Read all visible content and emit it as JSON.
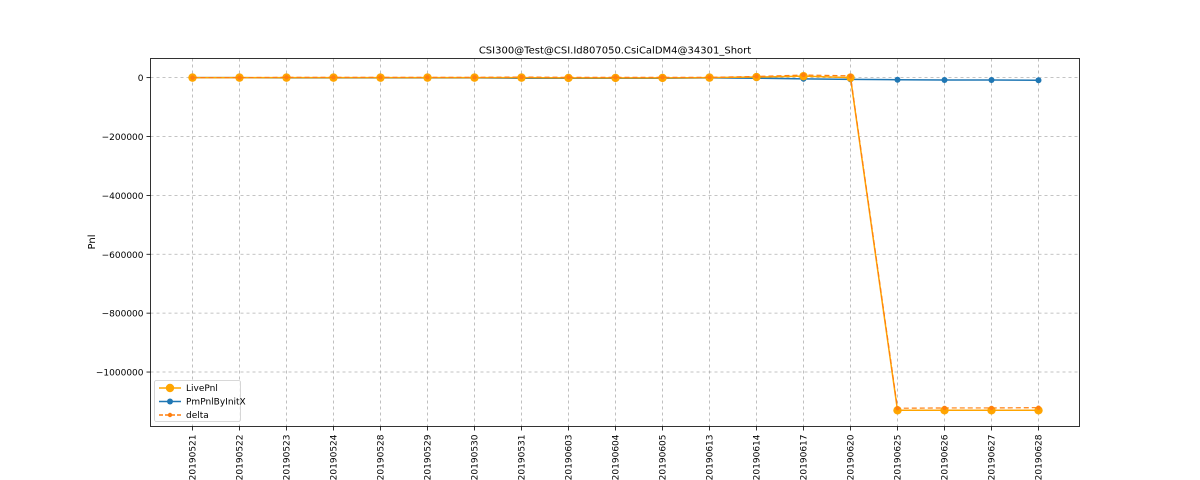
{
  "chart_data": {
    "type": "line",
    "title": "CSI300@Test@CSI.Id807050.CsiCalDM4@34301_Short",
    "xlabel": "",
    "ylabel": "Pnl",
    "categories": [
      "20190521",
      "20190522",
      "20190523",
      "20190524",
      "20190528",
      "20190529",
      "20190530",
      "20190531",
      "20190603",
      "20190604",
      "20190605",
      "20190613",
      "20190614",
      "20190617",
      "20190620",
      "20190625",
      "20190626",
      "20190627",
      "20190628"
    ],
    "ylim": [
      -1185000,
      65000
    ],
    "yticks": [
      0,
      -200000,
      -400000,
      -600000,
      -800000,
      -1000000
    ],
    "ytick_labels": [
      "0",
      "−200000",
      "−400000",
      "−600000",
      "−800000",
      "−1000000"
    ],
    "grid": true,
    "legend_position": "lower-left",
    "series": [
      {
        "name": "LivePnl",
        "color": "#ffa500",
        "style": "solid",
        "marker": "large-circle",
        "values": [
          0,
          0,
          0,
          0,
          0,
          0,
          0,
          0,
          -1000,
          -1000,
          -1000,
          0,
          2000,
          5000,
          0,
          -1130000,
          -1130000,
          -1130000,
          -1130000
        ]
      },
      {
        "name": "PmPnlByInitX",
        "color": "#1f77b4",
        "style": "solid",
        "marker": "circle",
        "values": [
          0,
          0,
          -1000,
          -1000,
          -1000,
          -1000,
          -1000,
          -2000,
          -2000,
          -2000,
          -2000,
          -1000,
          -2000,
          -4000,
          -6000,
          -7000,
          -8000,
          -8000,
          -9000
        ]
      },
      {
        "name": "delta",
        "color": "#ff7f0e",
        "style": "dashed",
        "marker": "small-circle",
        "values": [
          0,
          0,
          1000,
          1000,
          1000,
          1000,
          1000,
          2000,
          1000,
          1000,
          1000,
          1000,
          4000,
          9000,
          6000,
          -1123000,
          -1122000,
          -1122000,
          -1121000
        ]
      }
    ]
  }
}
